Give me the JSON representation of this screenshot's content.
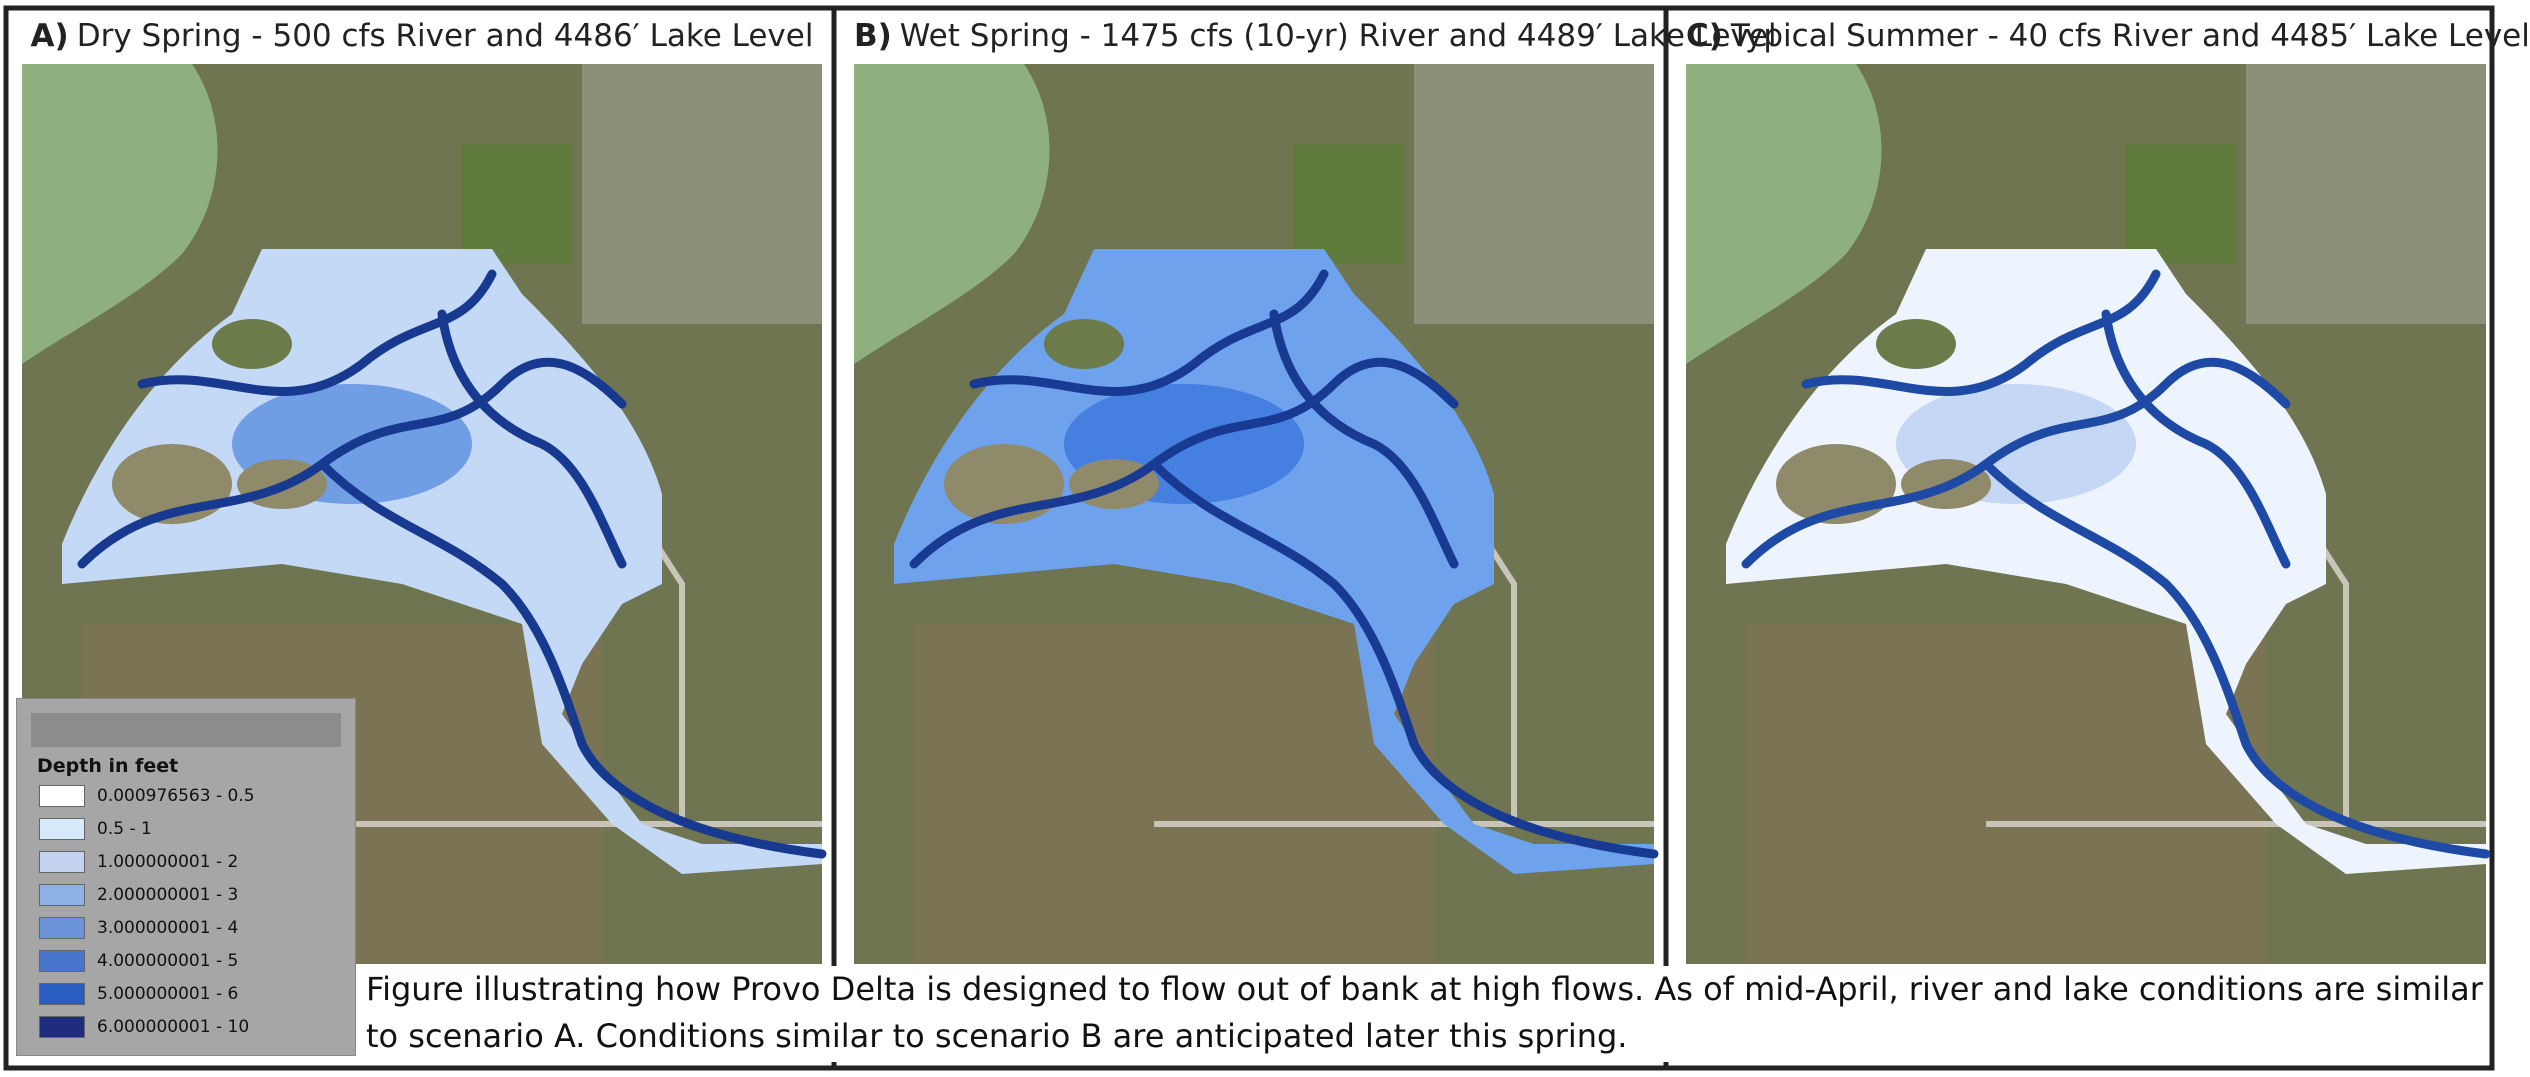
{
  "panels": [
    {
      "label": "A)",
      "title": "Dry Spring - 500 cfs River and 4486′ Lake Level"
    },
    {
      "label": "B)",
      "title": "Wet Spring - 1475 cfs (10-yr) River and 4489′ Lake Level"
    },
    {
      "label": "C)",
      "title": "Typical Summer - 40 cfs River and 4485′ Lake Level"
    }
  ],
  "legend": {
    "title": "Depth in feet",
    "items": [
      {
        "label": "0.000976563 - 0.5",
        "color": "#ffffff"
      },
      {
        "label": "0.5 - 1",
        "color": "#d5e9fb"
      },
      {
        "label": "1.000000001 - 2",
        "color": "#c3d3ef"
      },
      {
        "label": "2.000000001 - 3",
        "color": "#8eb2e6"
      },
      {
        "label": "3.000000001 - 4",
        "color": "#6a93d8"
      },
      {
        "label": "4.000000001 - 5",
        "color": "#4876cf"
      },
      {
        "label": "5.000000001 - 6",
        "color": "#2a5dc2"
      },
      {
        "label": "6.000000001 - 10",
        "color": "#1e2d7e"
      }
    ]
  },
  "caption": "Figure illustrating how Provo Delta is designed to flow out of bank at high flows. As of mid-April, river and lake conditions are similar to scenario A. Conditions similar to scenario B are anticipated later this spring."
}
